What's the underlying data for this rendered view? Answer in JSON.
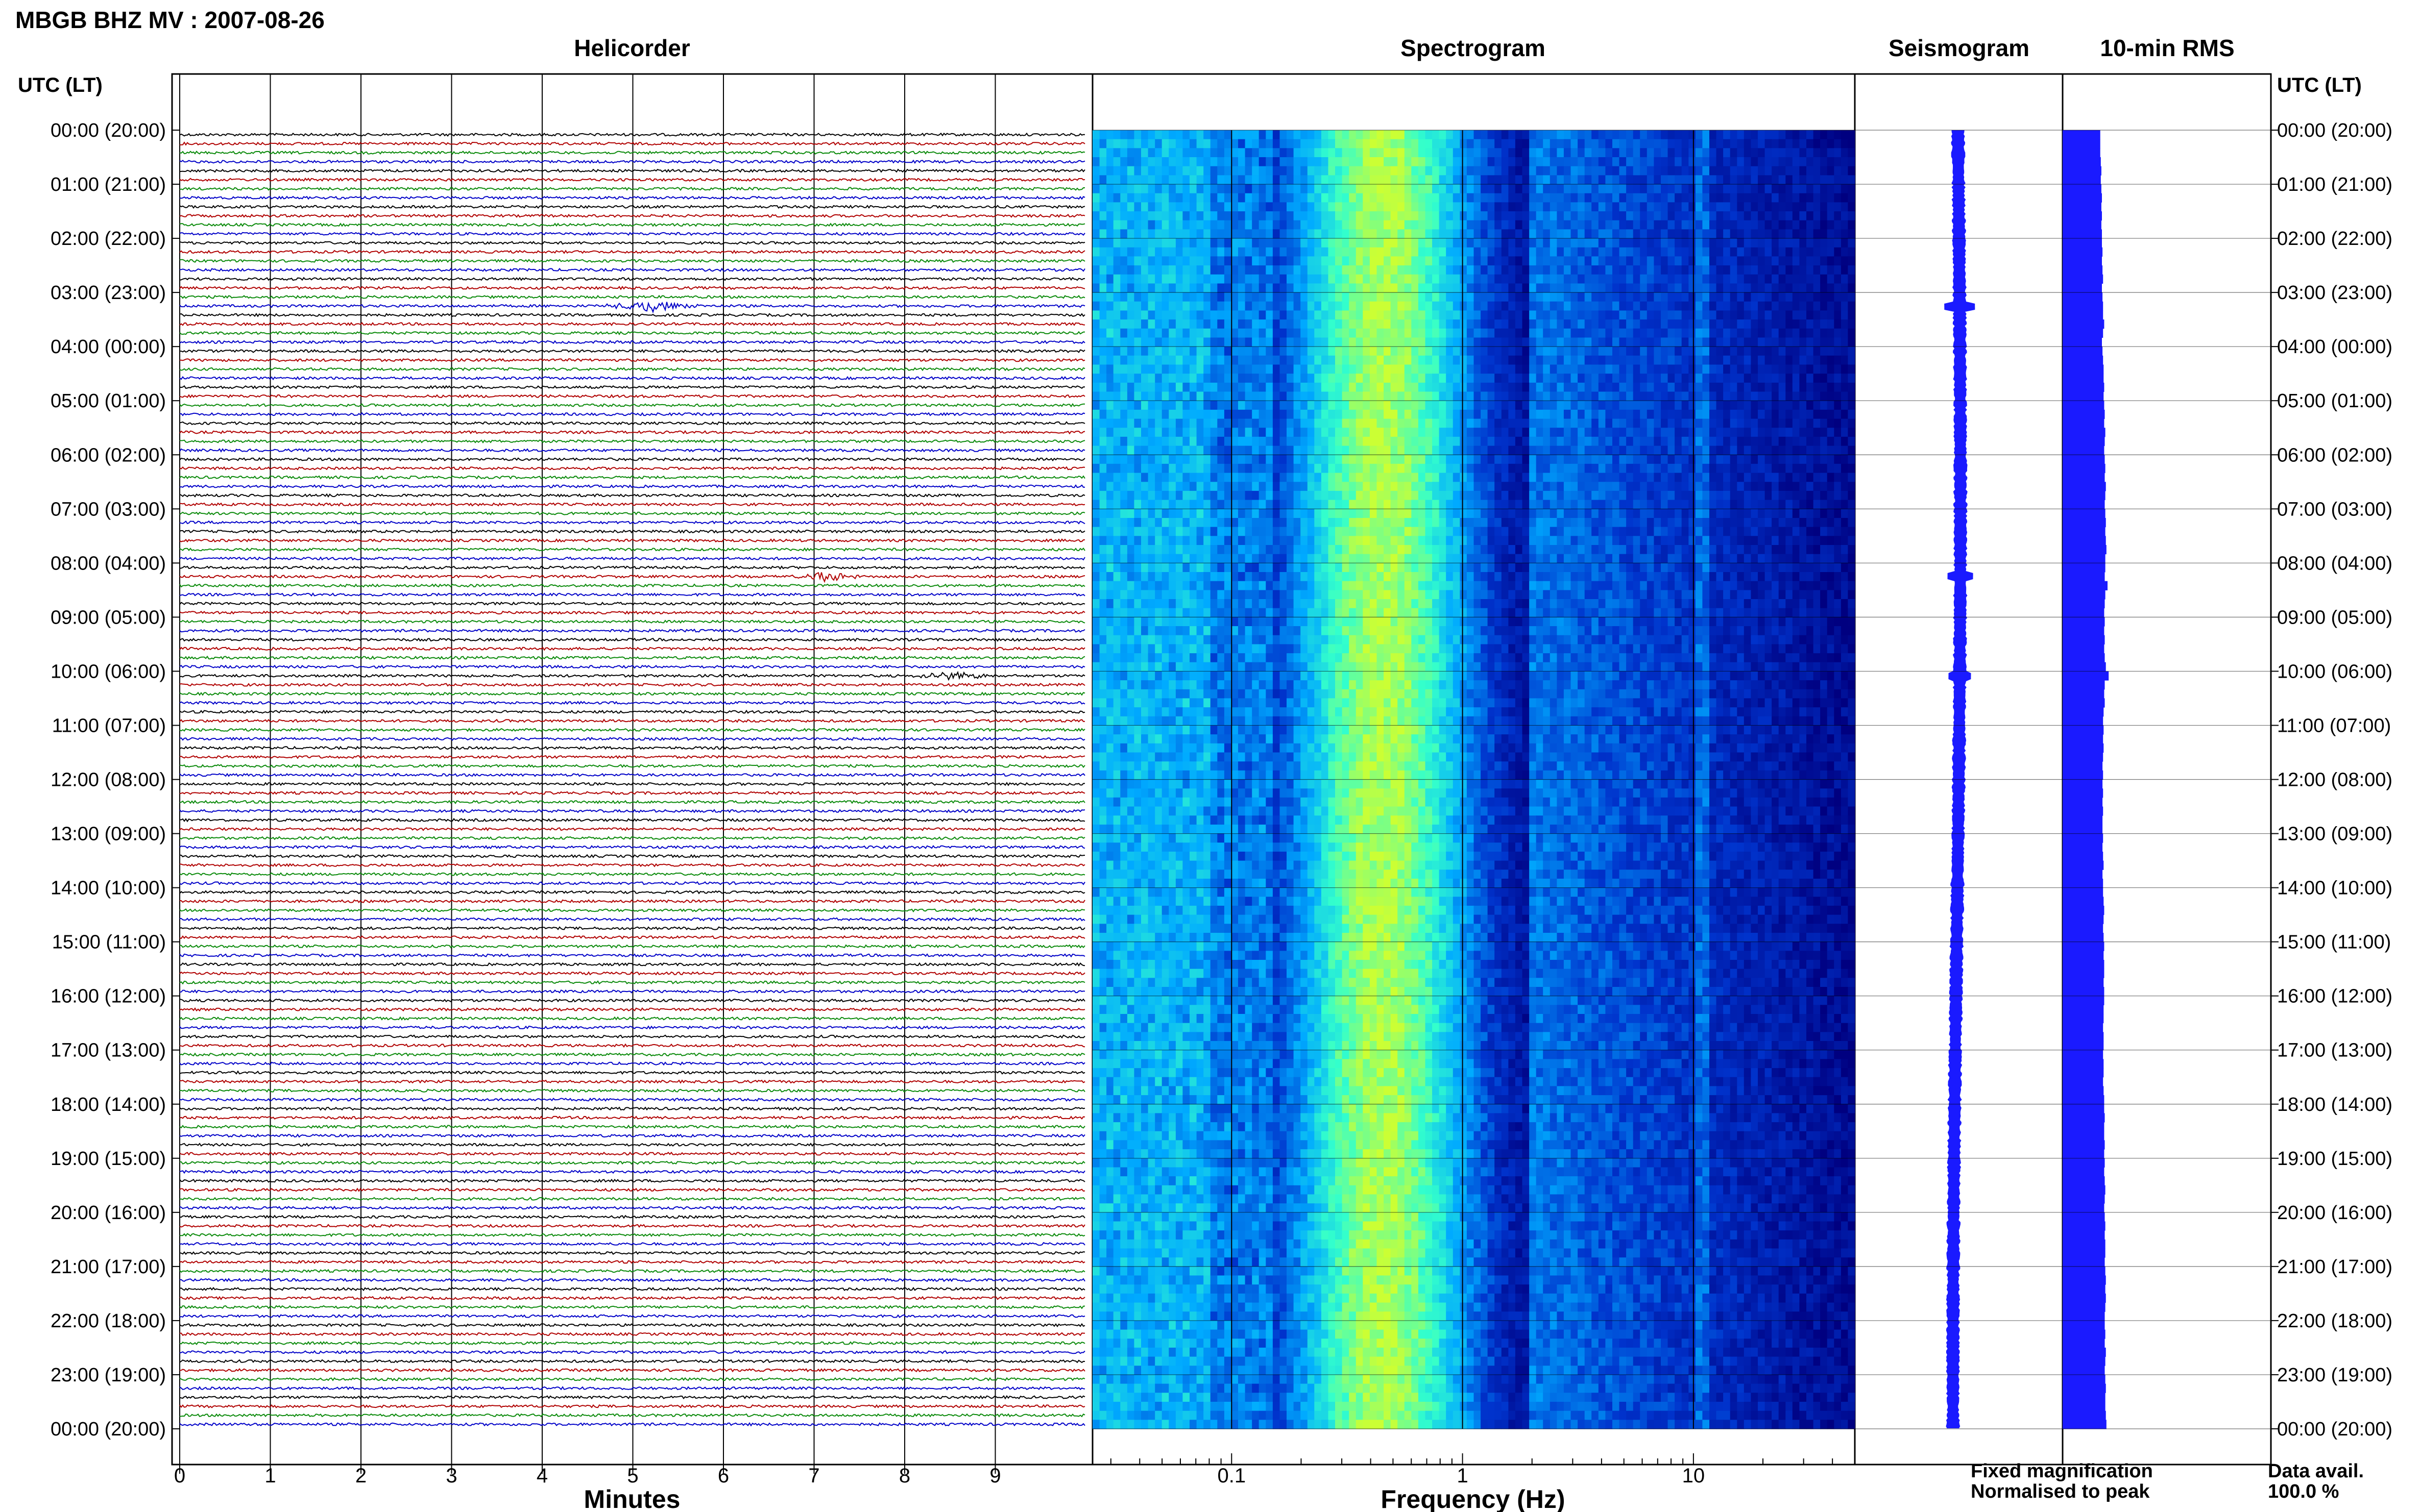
{
  "header": {
    "station_title": "MBGB BHZ MV : 2007-08-26",
    "panel_titles": {
      "helicorder": "Helicorder",
      "spectrogram": "Spectrogram",
      "seismogram": "Seismogram",
      "rms": "10-min RMS"
    },
    "time_axis_label": "UTC (LT)"
  },
  "footer": {
    "legend_fixed": "Fixed magnification",
    "legend_normalised": "Normalised to peak",
    "data_avail_label": "Data avail.",
    "data_avail_value": "100.0 %"
  },
  "colors": {
    "trace_cycle": [
      "#000000",
      "#b00000",
      "#0a8a0a",
      "#0000c8"
    ],
    "seismogram_color": "#1a1aff",
    "rms_color": "#1a1aff",
    "legend_fixed_color": "#1a1aff",
    "legend_normalised_color": "#ff1a1a",
    "spectrogram_colormap": [
      "#000080",
      "#0033cc",
      "#00aaff",
      "#33ffcc",
      "#ccff33"
    ]
  },
  "chart_data": [
    {
      "type": "line",
      "panel": "helicorder",
      "xlabel": "Minutes",
      "xticks": [
        0,
        1,
        2,
        3,
        4,
        5,
        6,
        7,
        8,
        9
      ],
      "xlim": [
        0,
        10
      ],
      "rows_per_hour": 6,
      "hours": 24,
      "row_ticks": [
        "00:00 (20:00)",
        "01:00 (21:00)",
        "02:00 (22:00)",
        "03:00 (23:00)",
        "04:00 (00:00)",
        "05:00 (01:00)",
        "06:00 (02:00)",
        "07:00 (03:00)",
        "08:00 (04:00)",
        "09:00 (05:00)",
        "10:00 (06:00)",
        "11:00 (07:00)",
        "12:00 (08:00)",
        "13:00 (09:00)",
        "14:00 (10:00)",
        "15:00 (11:00)",
        "16:00 (12:00)",
        "17:00 (13:00)",
        "18:00 (14:00)",
        "19:00 (15:00)",
        "20:00 (16:00)",
        "21:00 (17:00)",
        "22:00 (18:00)",
        "23:00 (19:00)",
        "00:00 (20:00)"
      ],
      "events": [
        {
          "row": 19,
          "minute_start": 4.6,
          "minute_end": 5.8,
          "amplitude": 1.0
        },
        {
          "row": 49,
          "minute_start": 6.7,
          "minute_end": 7.6,
          "amplitude": 0.8
        },
        {
          "row": 60,
          "minute_start": 7.9,
          "minute_end": 9.1,
          "amplitude": 0.6
        }
      ]
    },
    {
      "type": "heatmap",
      "panel": "spectrogram",
      "xlabel": "Frequency (Hz)",
      "xscale": "log",
      "xlim": [
        0.025,
        50
      ],
      "xticks": [
        0.1,
        1,
        10
      ],
      "xtick_labels": [
        "0.1",
        "1",
        "10"
      ],
      "ylim_hours": [
        0,
        24
      ]
    },
    {
      "type": "line",
      "panel": "seismogram",
      "legend": "Fixed magnification"
    },
    {
      "type": "bar",
      "panel": "rms",
      "orientation": "horizontal",
      "interval_minutes": 10,
      "values": [
        0.67,
        0.67,
        0.67,
        0.68,
        0.69,
        0.68,
        0.69,
        0.7,
        0.69,
        0.7,
        0.69,
        0.7,
        0.7,
        0.71,
        0.7,
        0.71,
        0.72,
        0.7,
        0.71,
        0.72,
        0.72,
        0.74,
        0.72,
        0.7,
        0.71,
        0.72,
        0.73,
        0.73,
        0.74,
        0.73,
        0.74,
        0.75,
        0.74,
        0.76,
        0.75,
        0.74,
        0.75,
        0.76,
        0.75,
        0.77,
        0.76,
        0.75,
        0.76,
        0.77,
        0.76,
        0.77,
        0.78,
        0.76,
        0.76,
        0.75,
        0.8,
        0.76,
        0.75,
        0.74,
        0.75,
        0.74,
        0.75,
        0.74,
        0.75,
        0.77,
        0.82,
        0.75,
        0.74,
        0.75,
        0.73,
        0.72,
        0.73,
        0.72,
        0.73,
        0.72,
        0.71,
        0.72,
        0.71,
        0.72,
        0.71,
        0.72,
        0.71,
        0.71,
        0.72,
        0.71,
        0.72,
        0.73,
        0.71,
        0.72,
        0.72,
        0.73,
        0.74,
        0.73,
        0.72,
        0.73,
        0.74,
        0.73,
        0.74,
        0.74,
        0.73,
        0.74,
        0.74,
        0.73,
        0.73,
        0.72,
        0.73,
        0.73,
        0.72,
        0.73,
        0.73,
        0.72,
        0.73,
        0.74,
        0.74,
        0.75,
        0.74,
        0.74,
        0.75,
        0.74,
        0.75,
        0.74,
        0.75,
        0.76,
        0.75,
        0.74,
        0.75,
        0.76,
        0.75,
        0.76,
        0.76,
        0.75,
        0.76,
        0.77,
        0.76,
        0.77,
        0.76,
        0.75,
        0.75,
        0.76,
        0.75,
        0.77,
        0.76,
        0.75,
        0.76,
        0.77,
        0.76,
        0.76,
        0.77,
        0.78
      ]
    }
  ]
}
